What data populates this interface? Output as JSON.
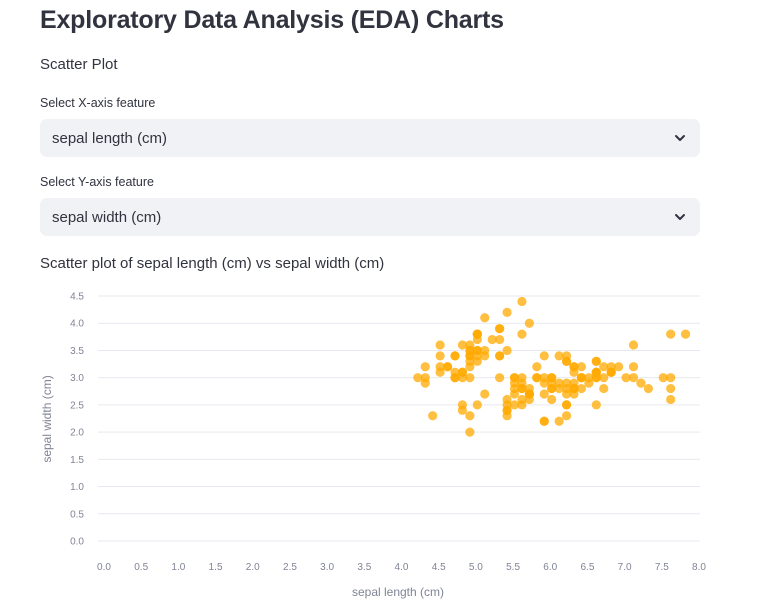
{
  "page": {
    "title": "Exploratory Data Analysis (EDA) Charts",
    "section_label": "Scatter Plot"
  },
  "x_select": {
    "label": "Select X-axis feature",
    "value": "sepal length (cm)",
    "icon": "chevron-down-icon"
  },
  "y_select": {
    "label": "Select Y-axis feature",
    "value": "sepal width (cm)",
    "icon": "chevron-down-icon"
  },
  "chart_title": "Scatter plot of sepal length (cm) vs sepal width (cm)",
  "colors": {
    "point": "#ffaa00",
    "grid": "#e6e9ef",
    "tick": "#808495",
    "select_bg": "#f0f2f6",
    "text": "#31333f"
  },
  "chart_data": {
    "type": "scatter",
    "xlabel": "sepal length (cm)",
    "ylabel": "sepal width (cm)",
    "xlim": [
      0,
      8
    ],
    "ylim": [
      0,
      4.5
    ],
    "grid": "horizontal",
    "x_ticks": [
      "0.0",
      "0.5",
      "1.0",
      "1.5",
      "2.0",
      "2.5",
      "3.0",
      "3.5",
      "4.0",
      "4.5",
      "5.0",
      "5.5",
      "6.0",
      "6.5",
      "7.0",
      "7.5",
      "8.0"
    ],
    "y_ticks": [
      "0.0",
      "0.5",
      "1.0",
      "1.5",
      "2.0",
      "2.5",
      "3.0",
      "3.5",
      "4.0",
      "4.5"
    ],
    "series": [
      {
        "points": [
          [
            5.1,
            3.5
          ],
          [
            4.9,
            3.0
          ],
          [
            4.7,
            3.2
          ],
          [
            4.6,
            3.1
          ],
          [
            5.0,
            3.6
          ],
          [
            5.4,
            3.9
          ],
          [
            4.6,
            3.4
          ],
          [
            5.0,
            3.4
          ],
          [
            4.4,
            2.9
          ],
          [
            4.9,
            3.1
          ],
          [
            5.4,
            3.7
          ],
          [
            4.8,
            3.4
          ],
          [
            4.8,
            3.0
          ],
          [
            4.3,
            3.0
          ],
          [
            5.8,
            4.0
          ],
          [
            5.7,
            4.4
          ],
          [
            5.4,
            3.9
          ],
          [
            5.1,
            3.5
          ],
          [
            5.7,
            3.8
          ],
          [
            5.1,
            3.8
          ],
          [
            5.4,
            3.4
          ],
          [
            5.1,
            3.7
          ],
          [
            4.6,
            3.6
          ],
          [
            5.1,
            3.3
          ],
          [
            4.8,
            3.4
          ],
          [
            5.0,
            3.0
          ],
          [
            5.0,
            3.4
          ],
          [
            5.2,
            3.5
          ],
          [
            5.2,
            3.4
          ],
          [
            4.7,
            3.2
          ],
          [
            4.8,
            3.1
          ],
          [
            5.4,
            3.4
          ],
          [
            5.2,
            4.1
          ],
          [
            5.5,
            4.2
          ],
          [
            4.9,
            3.1
          ],
          [
            5.0,
            3.2
          ],
          [
            5.5,
            3.5
          ],
          [
            4.9,
            3.6
          ],
          [
            4.4,
            3.0
          ],
          [
            5.1,
            3.4
          ],
          [
            5.0,
            3.5
          ],
          [
            4.5,
            2.3
          ],
          [
            4.4,
            3.2
          ],
          [
            5.0,
            3.5
          ],
          [
            5.1,
            3.8
          ],
          [
            4.8,
            3.0
          ],
          [
            5.1,
            3.8
          ],
          [
            4.6,
            3.2
          ],
          [
            5.3,
            3.7
          ],
          [
            5.0,
            3.3
          ],
          [
            7.0,
            3.2
          ],
          [
            6.4,
            3.2
          ],
          [
            6.9,
            3.1
          ],
          [
            5.5,
            2.3
          ],
          [
            6.5,
            2.8
          ],
          [
            5.7,
            2.8
          ],
          [
            6.3,
            3.3
          ],
          [
            4.9,
            2.4
          ],
          [
            6.6,
            2.9
          ],
          [
            5.2,
            2.7
          ],
          [
            5.0,
            2.0
          ],
          [
            5.9,
            3.0
          ],
          [
            6.0,
            2.2
          ],
          [
            6.1,
            2.9
          ],
          [
            5.6,
            2.9
          ],
          [
            6.7,
            3.1
          ],
          [
            5.6,
            3.0
          ],
          [
            5.8,
            2.7
          ],
          [
            6.2,
            2.2
          ],
          [
            5.6,
            2.5
          ],
          [
            5.9,
            3.2
          ],
          [
            6.1,
            2.8
          ],
          [
            6.3,
            2.5
          ],
          [
            6.1,
            2.8
          ],
          [
            6.4,
            2.9
          ],
          [
            6.6,
            3.0
          ],
          [
            6.8,
            2.8
          ],
          [
            6.7,
            3.0
          ],
          [
            6.0,
            2.9
          ],
          [
            5.7,
            2.6
          ],
          [
            5.5,
            2.4
          ],
          [
            5.5,
            2.4
          ],
          [
            5.8,
            2.7
          ],
          [
            6.0,
            2.7
          ],
          [
            5.4,
            3.0
          ],
          [
            6.0,
            3.4
          ],
          [
            6.7,
            3.1
          ],
          [
            6.3,
            2.3
          ],
          [
            5.6,
            3.0
          ],
          [
            5.5,
            2.5
          ],
          [
            5.5,
            2.6
          ],
          [
            6.1,
            3.0
          ],
          [
            5.8,
            2.6
          ],
          [
            5.0,
            2.3
          ],
          [
            5.6,
            2.7
          ],
          [
            5.7,
            3.0
          ],
          [
            5.7,
            2.9
          ],
          [
            6.2,
            2.9
          ],
          [
            5.1,
            2.5
          ],
          [
            5.7,
            2.8
          ],
          [
            6.3,
            3.3
          ],
          [
            5.8,
            2.7
          ],
          [
            7.1,
            3.0
          ],
          [
            6.3,
            2.9
          ],
          [
            6.5,
            3.0
          ],
          [
            7.6,
            3.0
          ],
          [
            4.9,
            2.5
          ],
          [
            7.3,
            2.9
          ],
          [
            6.7,
            2.5
          ],
          [
            7.2,
            3.6
          ],
          [
            6.5,
            3.2
          ],
          [
            6.4,
            2.7
          ],
          [
            6.8,
            3.0
          ],
          [
            5.7,
            2.5
          ],
          [
            5.8,
            2.8
          ],
          [
            6.4,
            3.2
          ],
          [
            6.5,
            3.0
          ],
          [
            7.7,
            3.8
          ],
          [
            7.7,
            2.6
          ],
          [
            6.0,
            2.2
          ],
          [
            6.9,
            3.2
          ],
          [
            5.6,
            2.8
          ],
          [
            7.7,
            2.8
          ],
          [
            6.3,
            2.7
          ],
          [
            6.7,
            3.3
          ],
          [
            7.2,
            3.2
          ],
          [
            6.2,
            2.8
          ],
          [
            6.1,
            3.0
          ],
          [
            6.4,
            2.8
          ],
          [
            7.2,
            3.0
          ],
          [
            7.4,
            2.8
          ],
          [
            7.9,
            3.8
          ],
          [
            6.4,
            2.8
          ],
          [
            6.3,
            2.8
          ],
          [
            6.1,
            2.6
          ],
          [
            7.7,
            3.0
          ],
          [
            6.3,
            3.4
          ],
          [
            6.4,
            3.1
          ],
          [
            6.0,
            3.0
          ],
          [
            6.9,
            3.1
          ],
          [
            6.7,
            3.1
          ],
          [
            6.9,
            3.1
          ],
          [
            5.8,
            2.7
          ],
          [
            6.8,
            3.2
          ],
          [
            6.7,
            3.3
          ],
          [
            6.7,
            3.0
          ],
          [
            6.3,
            2.5
          ],
          [
            6.5,
            3.0
          ],
          [
            6.2,
            3.4
          ],
          [
            5.9,
            3.0
          ]
        ]
      }
    ]
  }
}
